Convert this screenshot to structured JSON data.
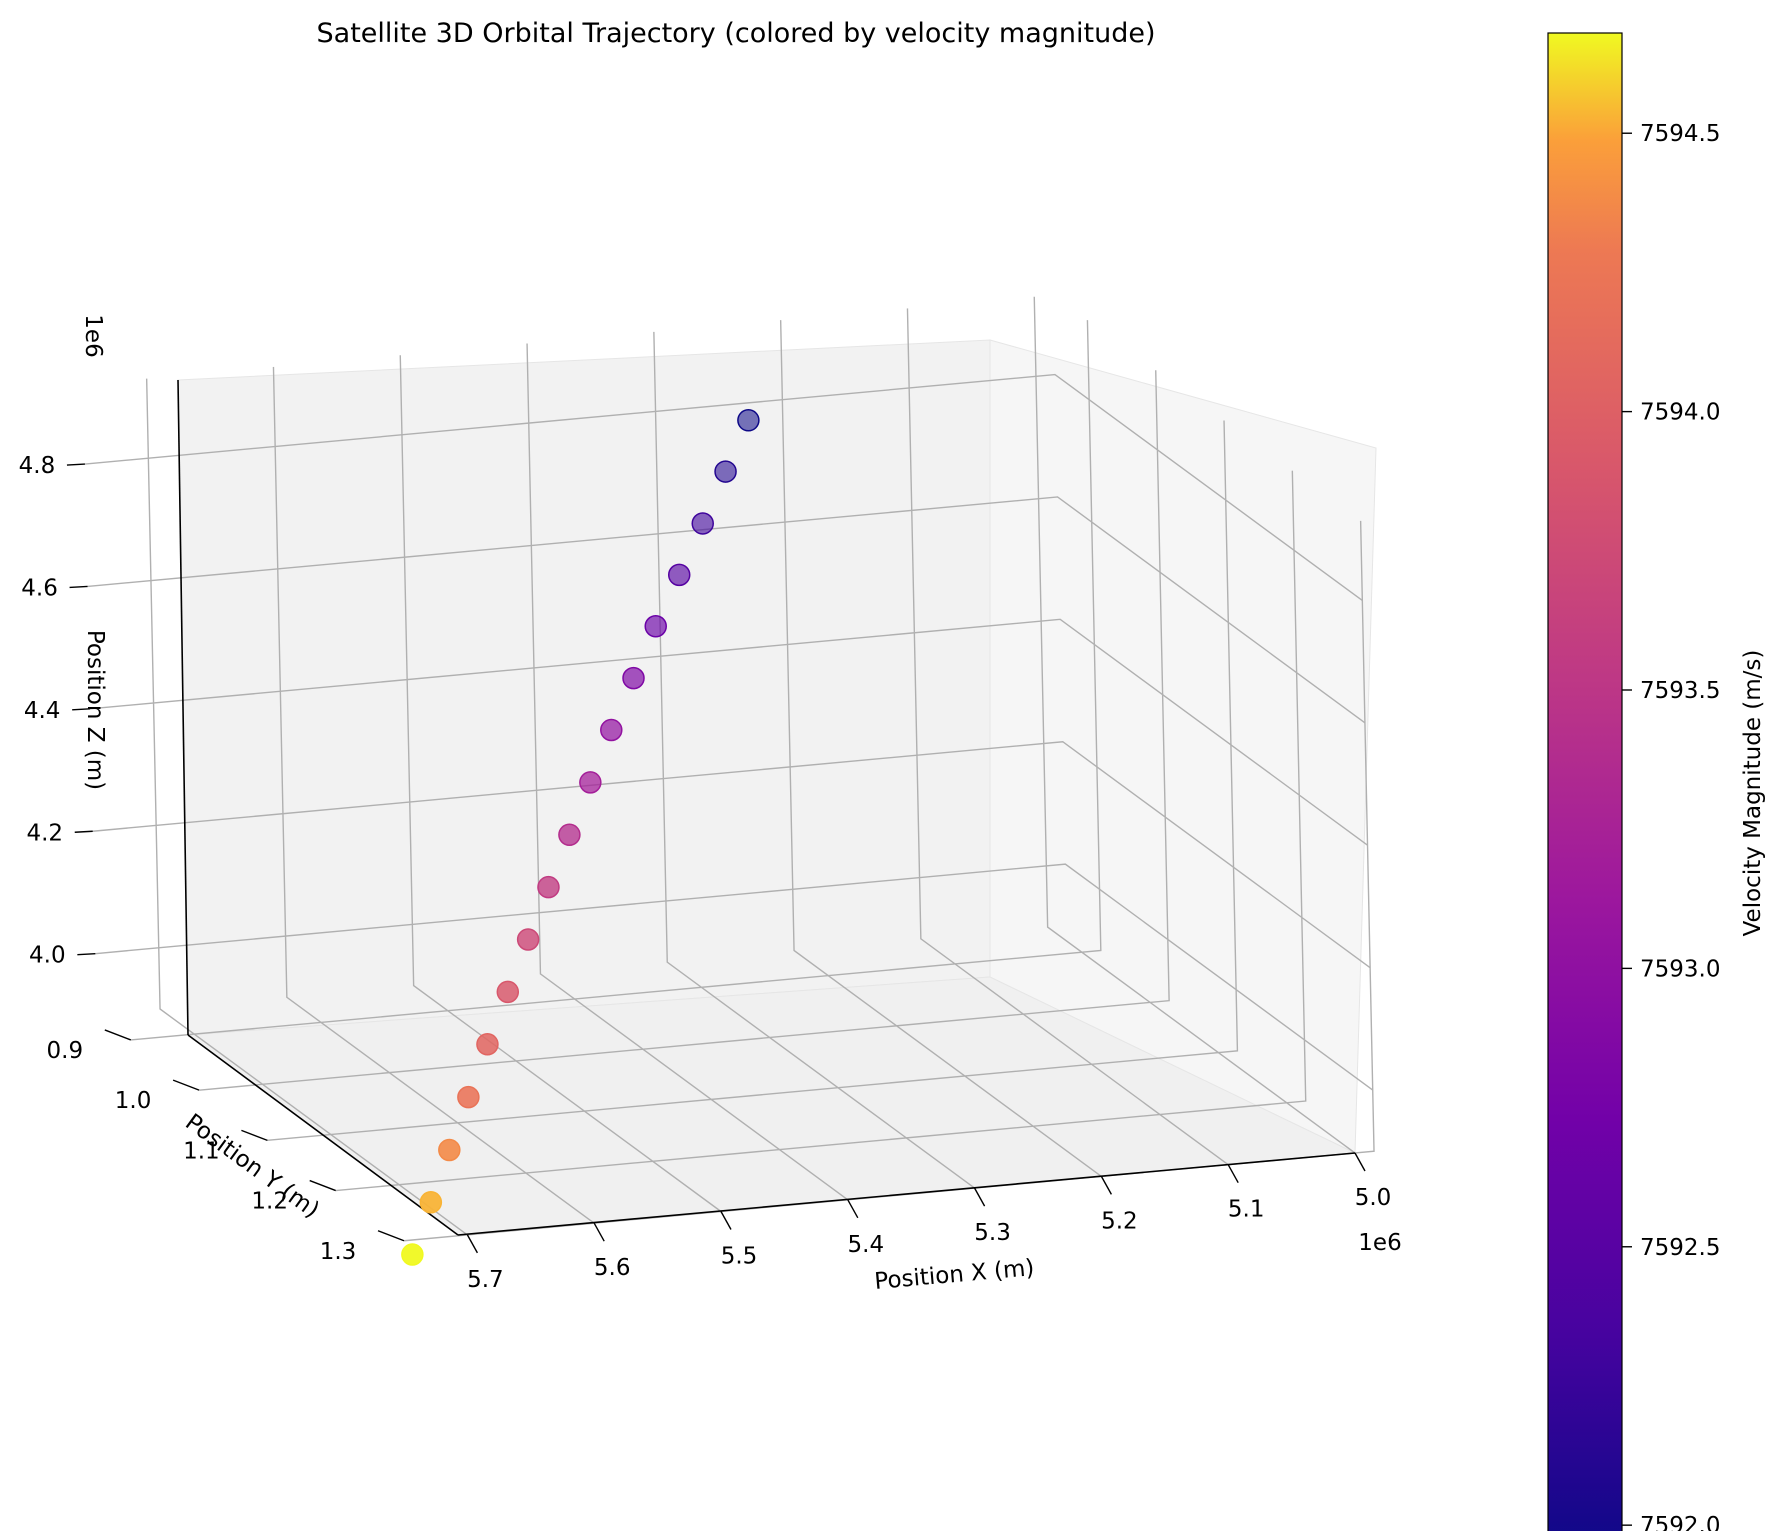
{
  "chart_data": {
    "type": "scatter",
    "projection": "3d",
    "title": "Satellite 3D Orbital Trajectory (colored by velocity magnitude)",
    "xlabel": "Position X (m)",
    "ylabel": "Position Y (m)",
    "zlabel": "Position Z (m)",
    "x_ticks": [
      "5.0",
      "5.1",
      "5.2",
      "5.3",
      "5.4",
      "5.5",
      "5.6",
      "5.7"
    ],
    "y_ticks": [
      "0.9",
      "1.0",
      "1.1",
      "1.2",
      "1.3"
    ],
    "z_ticks": [
      "4.0",
      "4.2",
      "4.4",
      "4.6",
      "4.8"
    ],
    "x_offset": "1e6",
    "y_offset": "1e6",
    "z_offset": "1e6",
    "grid": true,
    "colormap": "plasma",
    "colorbar": {
      "label": "Velocity Magnitude (m/s)",
      "ticks": [
        "7592.0",
        "7592.5",
        "7593.0",
        "7593.5",
        "7594.0",
        "7594.5"
      ],
      "range": [
        7591.95,
        7594.68
      ]
    },
    "points": [
      {
        "x": 5.732,
        "y": 1.278,
        "z": 3.856,
        "v": 7594.68
      },
      {
        "x": 5.706,
        "y": 1.258,
        "z": 3.92,
        "v": 7594.53
      },
      {
        "x": 5.68,
        "y": 1.238,
        "z": 3.984,
        "v": 7594.38
      },
      {
        "x": 5.653,
        "y": 1.217,
        "z": 4.048,
        "v": 7594.22
      },
      {
        "x": 5.626,
        "y": 1.196,
        "z": 4.112,
        "v": 7594.06
      },
      {
        "x": 5.598,
        "y": 1.175,
        "z": 4.175,
        "v": 7593.9
      },
      {
        "x": 5.57,
        "y": 1.154,
        "z": 4.238,
        "v": 7593.73
      },
      {
        "x": 5.542,
        "y": 1.133,
        "z": 4.301,
        "v": 7593.56
      },
      {
        "x": 5.513,
        "y": 1.111,
        "z": 4.363,
        "v": 7593.39
      },
      {
        "x": 5.484,
        "y": 1.089,
        "z": 4.425,
        "v": 7593.21
      },
      {
        "x": 5.455,
        "y": 1.067,
        "z": 4.487,
        "v": 7593.03
      },
      {
        "x": 5.425,
        "y": 1.045,
        "z": 4.548,
        "v": 7592.85
      },
      {
        "x": 5.395,
        "y": 1.023,
        "z": 4.609,
        "v": 7592.67
      },
      {
        "x": 5.364,
        "y": 1.001,
        "z": 4.669,
        "v": 7592.48
      },
      {
        "x": 5.333,
        "y": 0.979,
        "z": 4.729,
        "v": 7592.29
      },
      {
        "x": 5.302,
        "y": 0.956,
        "z": 4.789,
        "v": 7592.1
      },
      {
        "x": 5.271,
        "y": 0.933,
        "z": 4.848,
        "v": 7591.95
      }
    ]
  }
}
